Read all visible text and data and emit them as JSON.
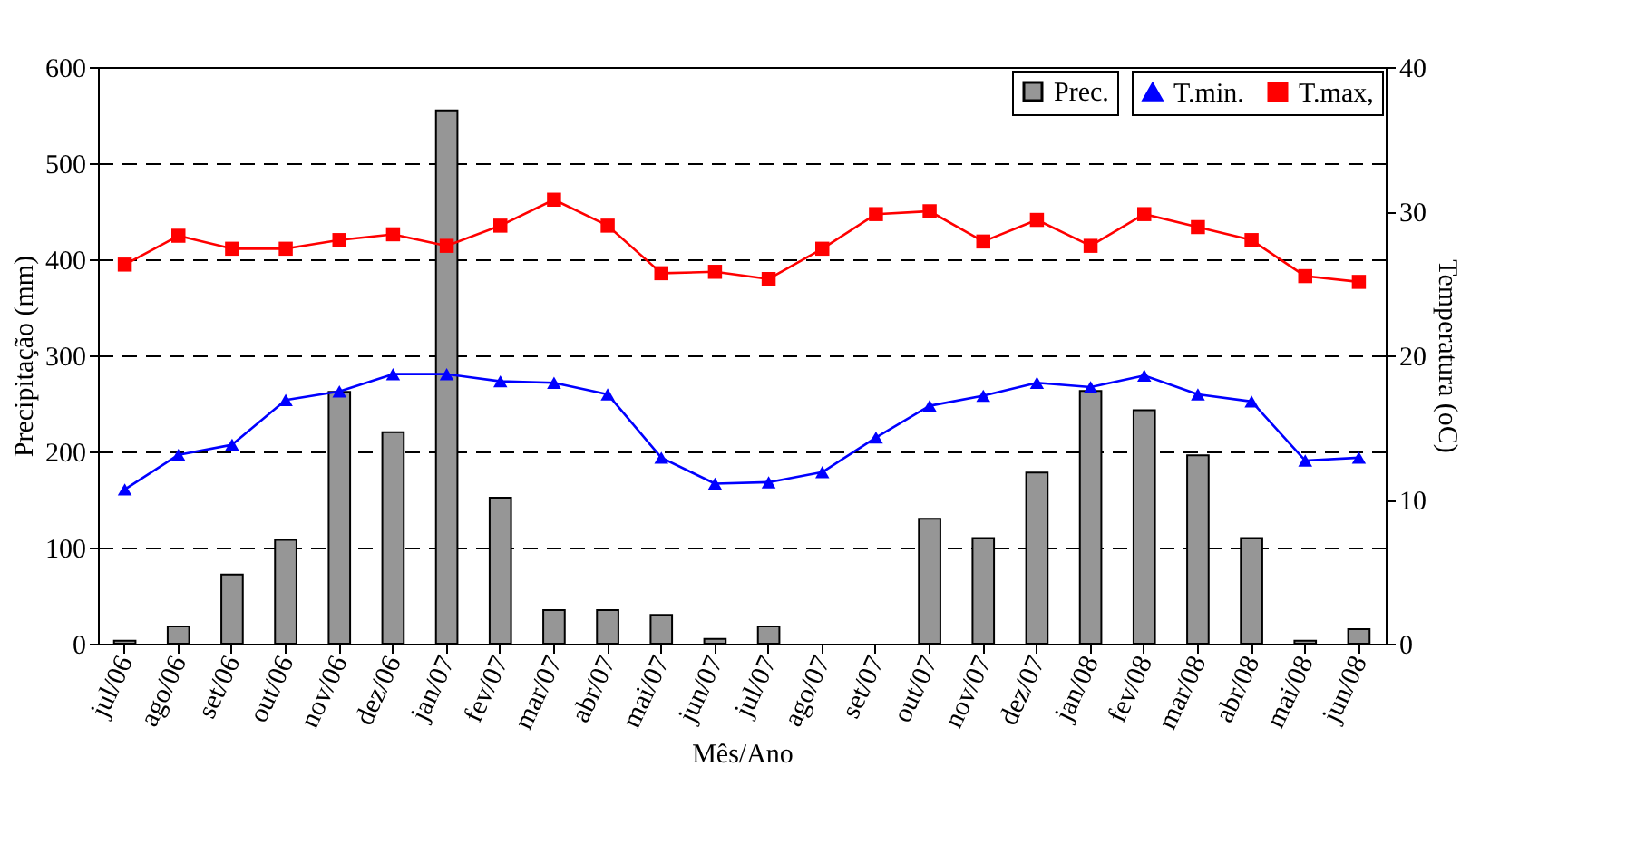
{
  "chart_data": {
    "type": "bar",
    "xlabel": "Mês/Ano",
    "ylabel": "Precipitação (mm)",
    "y2label": "Temperatura (oC)",
    "categories": [
      "jul/06",
      "ago/06",
      "set/06",
      "out/06",
      "nov/06",
      "dez/06",
      "jan/07",
      "fev/07",
      "mar/07",
      "abr/07",
      "mai/07",
      "jun/07",
      "jul/07",
      "ago/07",
      "set/07",
      "out/07",
      "nov/07",
      "dez/07",
      "jan/08",
      "fev/08",
      "mar/08",
      "abr/08",
      "mai/08",
      "jun/08"
    ],
    "series": [
      {
        "name": "Prec.",
        "color": "#969696",
        "values": [
          3,
          18,
          72,
          108,
          262,
          220,
          555,
          152,
          35,
          35,
          30,
          5,
          18,
          0,
          0,
          130,
          110,
          178,
          263,
          243,
          196,
          110,
          3,
          15
        ]
      },
      {
        "name": "T.min.",
        "type": "line",
        "axis": "y2",
        "marker": "triangle",
        "color": "#0000ff",
        "values": [
          10.7,
          13.1,
          13.8,
          16.9,
          17.5,
          18.7,
          18.7,
          18.2,
          18.1,
          17.3,
          12.9,
          11.1,
          11.2,
          11.9,
          14.3,
          16.5,
          17.2,
          18.1,
          17.8,
          18.6,
          17.3,
          16.8,
          12.7,
          12.9
        ]
      },
      {
        "name": "T.max,",
        "type": "line",
        "axis": "y2",
        "marker": "square",
        "color": "#ff0000",
        "values": [
          26.3,
          28.3,
          27.4,
          27.4,
          28.0,
          28.4,
          27.6,
          29.0,
          30.8,
          29.0,
          25.7,
          25.8,
          25.3,
          27.4,
          29.8,
          30.0,
          27.9,
          29.4,
          27.6,
          29.8,
          28.9,
          28.0,
          25.5,
          25.1
        ]
      }
    ],
    "ylim": [
      0,
      600
    ],
    "yticks": [
      0,
      100,
      200,
      300,
      400,
      500,
      600
    ],
    "y2lim": [
      0,
      40
    ],
    "y2ticks": [
      0,
      10,
      20,
      30,
      40
    ],
    "grid": "y",
    "legend": "top right",
    "line_style": "solid"
  }
}
